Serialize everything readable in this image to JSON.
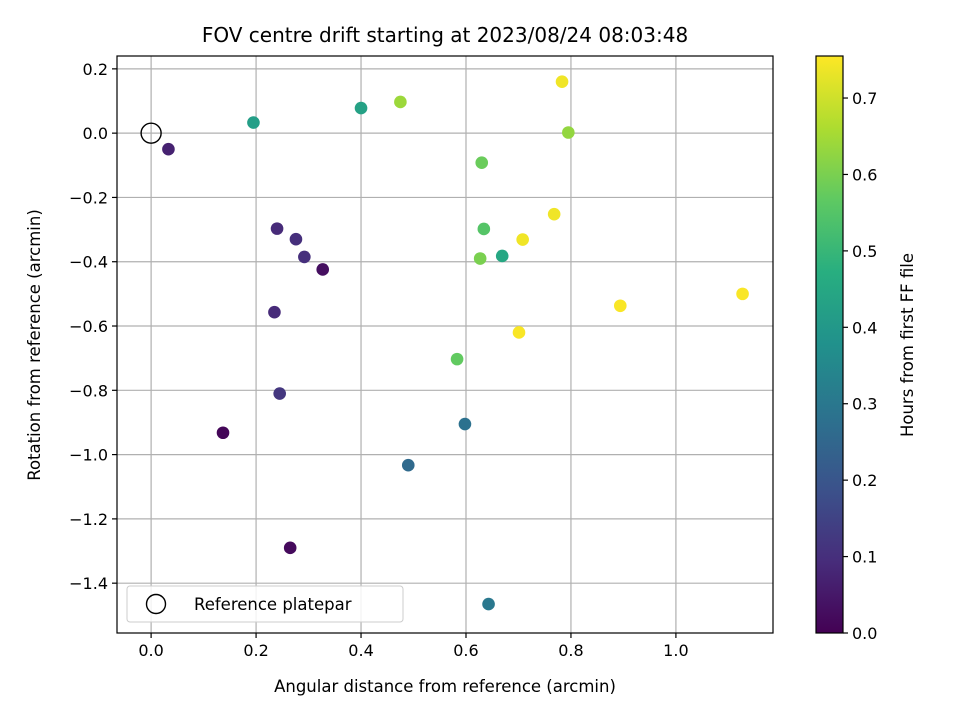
{
  "chart_data": {
    "type": "scatter",
    "title": "FOV centre drift starting at 2023/08/24 08:03:48",
    "xlabel": "Angular distance from reference (arcmin)",
    "ylabel": "Rotation from reference (arcmin)",
    "xlim": [
      -0.065,
      1.185
    ],
    "ylim": [
      -1.555,
      0.24
    ],
    "xticks": [
      0.0,
      0.2,
      0.4,
      0.6,
      0.8,
      1.0
    ],
    "xtick_labels": [
      "0.0",
      "0.2",
      "0.4",
      "0.6",
      "0.8",
      "1.0"
    ],
    "yticks": [
      0.2,
      0.0,
      -0.2,
      -0.4,
      -0.6,
      -0.8,
      -1.0,
      -1.2,
      -1.4
    ],
    "ytick_labels": [
      "0.2",
      "0.0",
      "−0.2",
      "−0.4",
      "−0.6",
      "−0.8",
      "−1.0",
      "−1.2",
      "−1.4"
    ],
    "grid": true,
    "colormap": "viridis",
    "colorbar": {
      "label": "Hours from first FF file",
      "range": [
        0.0,
        0.755
      ],
      "ticks": [
        0.0,
        0.1,
        0.2,
        0.3,
        0.4,
        0.5,
        0.6,
        0.7
      ],
      "tick_labels": [
        "0.0",
        "0.1",
        "0.2",
        "0.3",
        "0.4",
        "0.5",
        "0.6",
        "0.7"
      ]
    },
    "reference": {
      "x": 0.0,
      "y": 0.0,
      "label": "Reference platepar"
    },
    "legend": {
      "placement": "lower-left",
      "entries": [
        "Reference platepar"
      ]
    },
    "points": [
      {
        "x": 0.033,
        "y": -0.05,
        "c": 0.07
      },
      {
        "x": 0.137,
        "y": -0.932,
        "c": 0.01
      },
      {
        "x": 0.195,
        "y": 0.033,
        "c": 0.42
      },
      {
        "x": 0.235,
        "y": -0.557,
        "c": 0.09
      },
      {
        "x": 0.24,
        "y": -0.297,
        "c": 0.09
      },
      {
        "x": 0.245,
        "y": -0.81,
        "c": 0.12
      },
      {
        "x": 0.265,
        "y": -1.29,
        "c": 0.02
      },
      {
        "x": 0.276,
        "y": -0.33,
        "c": 0.1
      },
      {
        "x": 0.292,
        "y": -0.385,
        "c": 0.1
      },
      {
        "x": 0.327,
        "y": -0.424,
        "c": 0.03
      },
      {
        "x": 0.4,
        "y": 0.078,
        "c": 0.43
      },
      {
        "x": 0.475,
        "y": 0.097,
        "c": 0.64
      },
      {
        "x": 0.49,
        "y": -1.033,
        "c": 0.26
      },
      {
        "x": 0.583,
        "y": -0.703,
        "c": 0.57
      },
      {
        "x": 0.598,
        "y": -0.905,
        "c": 0.28
      },
      {
        "x": 0.627,
        "y": -0.39,
        "c": 0.6
      },
      {
        "x": 0.63,
        "y": -0.092,
        "c": 0.58
      },
      {
        "x": 0.634,
        "y": -0.298,
        "c": 0.55
      },
      {
        "x": 0.643,
        "y": -1.465,
        "c": 0.3
      },
      {
        "x": 0.669,
        "y": -0.382,
        "c": 0.45
      },
      {
        "x": 0.701,
        "y": -0.62,
        "c": 0.75
      },
      {
        "x": 0.708,
        "y": -0.331,
        "c": 0.74
      },
      {
        "x": 0.768,
        "y": -0.252,
        "c": 0.74
      },
      {
        "x": 0.783,
        "y": 0.16,
        "c": 0.74
      },
      {
        "x": 0.795,
        "y": 0.002,
        "c": 0.63
      },
      {
        "x": 0.894,
        "y": -0.537,
        "c": 0.75
      },
      {
        "x": 1.127,
        "y": -0.5,
        "c": 0.75
      }
    ]
  }
}
